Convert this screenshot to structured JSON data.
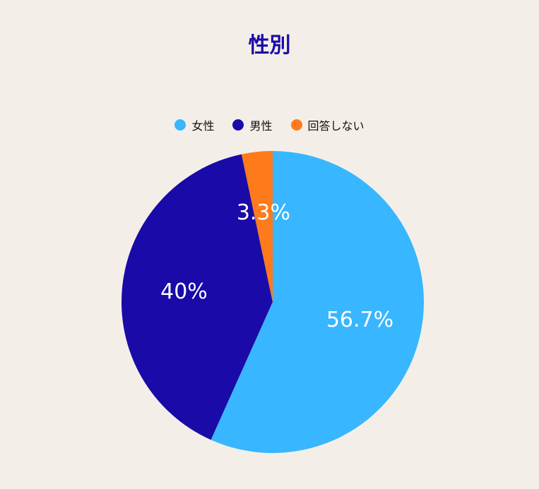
{
  "chart_data": {
    "type": "pie",
    "title": "性別",
    "legend_position": "top",
    "slices": [
      {
        "label": "女性",
        "value": 56.7,
        "value_label": "56.7%",
        "color": "#38b6ff"
      },
      {
        "label": "男性",
        "value": 40,
        "value_label": "40%",
        "color": "#1a0aa8"
      },
      {
        "label": "回答しない",
        "value": 3.3,
        "value_label": "3.3%",
        "color": "#ff7a1a"
      }
    ]
  },
  "colors": {
    "background": "#f3efe8",
    "title": "#1a0aa8"
  }
}
